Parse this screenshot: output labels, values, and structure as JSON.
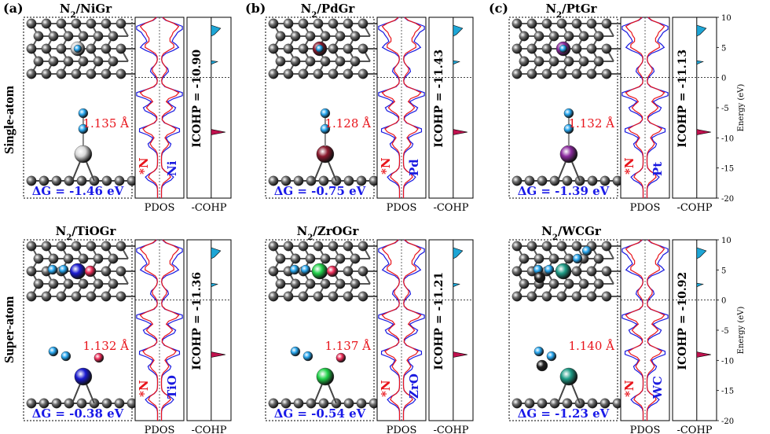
{
  "figure": {
    "row_labels": [
      "Single-atom",
      "Super-atom"
    ],
    "axis_label": "Energy (eV)",
    "y_ticks": [
      "10",
      "5",
      "0",
      "-5",
      "-10",
      "-15",
      "-20"
    ],
    "bottom_labels": {
      "pdos": "PDOS",
      "cohp": "-COHP"
    },
    "colors": {
      "pdos_n2": "#e8141b",
      "pdos_metal": "#1a1ae0",
      "cohp_fill": "#1ea6d6",
      "cohp_fill_neg": "#c1124f",
      "dg_text": "#1a1ae8",
      "bond_text": "#e8141b",
      "carbon": "#6e6e6e",
      "nitrogen": "#27a7f0",
      "oxygen": "#ef2e5a"
    }
  },
  "panels": [
    {
      "id": "a-top",
      "tag": "(a)",
      "title_pre": "N",
      "title_sub": "2",
      "title_post": "/NiGr",
      "bond": "1.135 Å",
      "dg": "ΔG = -1.46 eV",
      "n2_label": "*N",
      "n2_sub": "2",
      "metal": "Ni",
      "icohp": "ICOHP = -10.90",
      "metal_color": "#d9d9d9"
    },
    {
      "id": "b-top",
      "tag": "(b)",
      "title_pre": "N",
      "title_sub": "2",
      "title_post": "/PdGr",
      "bond": "1.128 Å",
      "dg": "ΔG = -0.75 eV",
      "n2_label": "*N",
      "n2_sub": "2",
      "metal": "Pd",
      "icohp": "ICOHP = -11.43",
      "metal_color": "#8b1a2e"
    },
    {
      "id": "c-top",
      "tag": "(c)",
      "title_pre": "N",
      "title_sub": "2",
      "title_post": "/PtGr",
      "bond": "1.132 Å",
      "dg": "ΔG = -1.39 eV",
      "n2_label": "*N",
      "n2_sub": "2",
      "metal": "Pt",
      "icohp": "ICOHP = -11.13",
      "metal_color": "#8b2a9e"
    },
    {
      "id": "a-bot",
      "tag": "",
      "title_pre": "N",
      "title_sub": "2",
      "title_post": "/TiOGr",
      "bond": "1.132 Å",
      "dg": "ΔG = -0.38 eV",
      "n2_label": "*N",
      "n2_sub": "2",
      "metal": "TiO",
      "icohp": "ICOHP = -11.36",
      "metal_color": "#1a1ad0"
    },
    {
      "id": "b-bot",
      "tag": "",
      "title_pre": "N",
      "title_sub": "2",
      "title_post": "/ZrOGr",
      "bond": "1.137 Å",
      "dg": "ΔG = -0.54 eV",
      "n2_label": "*N",
      "n2_sub": "2",
      "metal": "ZrO",
      "icohp": "ICOHP = -11.21",
      "metal_color": "#22d24a"
    },
    {
      "id": "c-bot",
      "tag": "",
      "title_pre": "N",
      "title_sub": "2",
      "title_post": "/WCGr",
      "bond": "1.140 Å",
      "dg": "ΔG = -1.23 eV",
      "n2_label": "*N",
      "n2_sub": "2",
      "metal": "WC",
      "icohp": "ICOHP = -10.92",
      "metal_color": "#1e9c86"
    }
  ]
}
